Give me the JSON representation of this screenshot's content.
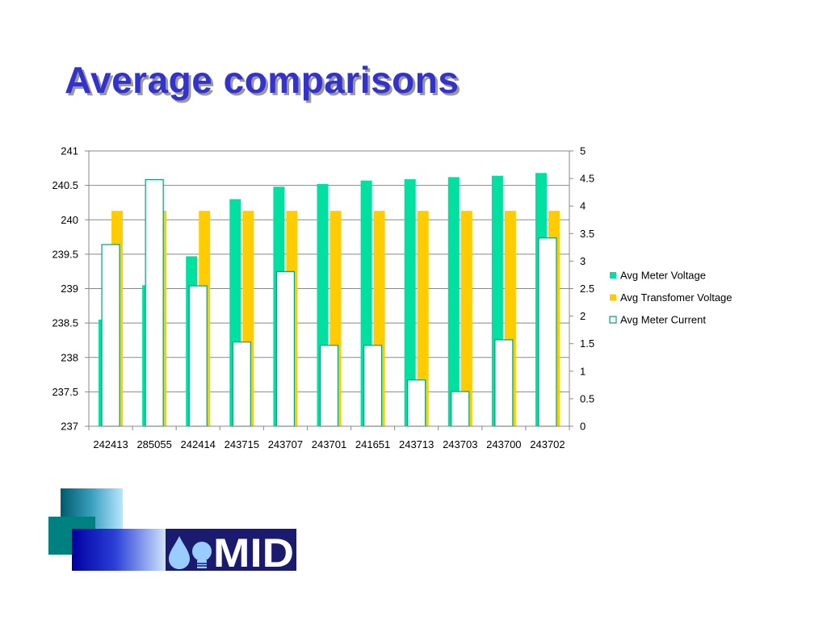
{
  "slide": {
    "title": "Average comparisons"
  },
  "chart_data": {
    "type": "bar",
    "title": "",
    "xlabel": "",
    "ylabel": "",
    "y2label": "",
    "categories": [
      "242413",
      "285055",
      "242414",
      "243715",
      "243707",
      "243701",
      "241651",
      "243713",
      "243703",
      "243700",
      "243702"
    ],
    "ylim": [
      237,
      241
    ],
    "yticks": [
      "237",
      "237.5",
      "238",
      "238.5",
      "239",
      "239.5",
      "240",
      "240.5",
      "241"
    ],
    "y2lim": [
      0,
      5
    ],
    "y2ticks": [
      "0",
      "0.5",
      "1",
      "1.5",
      "2",
      "2.5",
      "3",
      "3.5",
      "4",
      "4.5",
      "5"
    ],
    "grid": true,
    "legend_position": "right",
    "series": [
      {
        "name": "Avg Meter Voltage",
        "axis": "left",
        "color": "#00e0a0",
        "values": [
          238.55,
          239.05,
          239.47,
          240.3,
          240.48,
          240.52,
          240.57,
          240.59,
          240.62,
          240.64,
          240.68
        ]
      },
      {
        "name": "Avg Transfomer Voltage",
        "axis": "left",
        "color": "#ffcc00",
        "values": [
          240.13,
          240.13,
          240.13,
          240.13,
          240.13,
          240.13,
          240.13,
          240.13,
          240.13,
          240.13,
          240.13
        ]
      },
      {
        "name": "Avg Meter Current",
        "axis": "right",
        "color": "#ffffff",
        "stroke": "#00a080",
        "values": [
          3.3,
          4.48,
          2.55,
          1.53,
          2.81,
          1.47,
          1.47,
          0.84,
          0.63,
          1.57,
          3.42
        ]
      }
    ]
  },
  "logo": {
    "text": "MID",
    "colors": {
      "dark_navy": "#1a1a6e",
      "teal": "#008080",
      "blue": "#0000cc",
      "light_blue": "#99ccff"
    }
  }
}
